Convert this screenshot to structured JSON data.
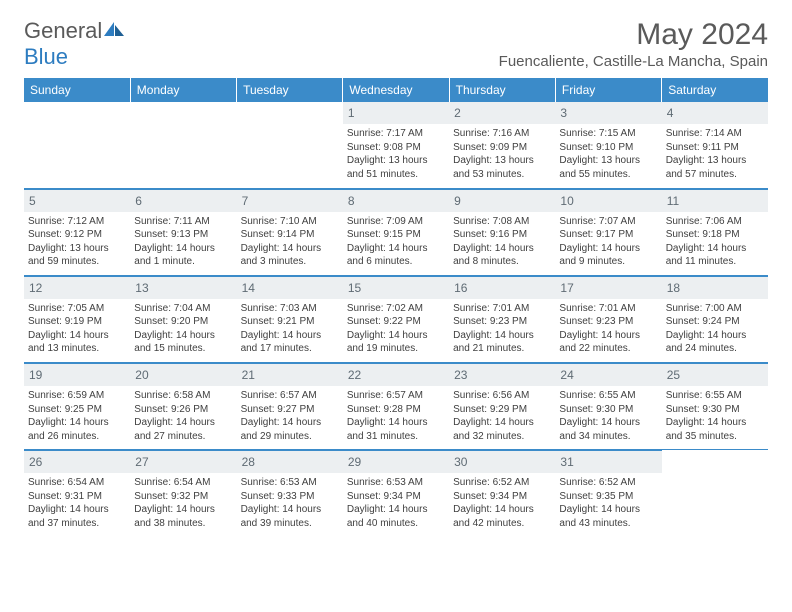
{
  "logo": {
    "text1": "General",
    "text2": "Blue"
  },
  "header": {
    "month_title": "May 2024",
    "location": "Fuencaliente, Castille-La Mancha, Spain"
  },
  "colors": {
    "header_bg": "#3b8bc9",
    "header_text": "#ffffff",
    "daynum_bg": "#eceff1",
    "daynum_text": "#5f6b74",
    "body_text": "#404040",
    "rule": "#3b8bc9"
  },
  "daynames": [
    "Sunday",
    "Monday",
    "Tuesday",
    "Wednesday",
    "Thursday",
    "Friday",
    "Saturday"
  ],
  "weeks": [
    [
      null,
      null,
      null,
      {
        "n": "1",
        "sr": "Sunrise: 7:17 AM",
        "ss": "Sunset: 9:08 PM",
        "dl1": "Daylight: 13 hours",
        "dl2": "and 51 minutes."
      },
      {
        "n": "2",
        "sr": "Sunrise: 7:16 AM",
        "ss": "Sunset: 9:09 PM",
        "dl1": "Daylight: 13 hours",
        "dl2": "and 53 minutes."
      },
      {
        "n": "3",
        "sr": "Sunrise: 7:15 AM",
        "ss": "Sunset: 9:10 PM",
        "dl1": "Daylight: 13 hours",
        "dl2": "and 55 minutes."
      },
      {
        "n": "4",
        "sr": "Sunrise: 7:14 AM",
        "ss": "Sunset: 9:11 PM",
        "dl1": "Daylight: 13 hours",
        "dl2": "and 57 minutes."
      }
    ],
    [
      {
        "n": "5",
        "sr": "Sunrise: 7:12 AM",
        "ss": "Sunset: 9:12 PM",
        "dl1": "Daylight: 13 hours",
        "dl2": "and 59 minutes."
      },
      {
        "n": "6",
        "sr": "Sunrise: 7:11 AM",
        "ss": "Sunset: 9:13 PM",
        "dl1": "Daylight: 14 hours",
        "dl2": "and 1 minute."
      },
      {
        "n": "7",
        "sr": "Sunrise: 7:10 AM",
        "ss": "Sunset: 9:14 PM",
        "dl1": "Daylight: 14 hours",
        "dl2": "and 3 minutes."
      },
      {
        "n": "8",
        "sr": "Sunrise: 7:09 AM",
        "ss": "Sunset: 9:15 PM",
        "dl1": "Daylight: 14 hours",
        "dl2": "and 6 minutes."
      },
      {
        "n": "9",
        "sr": "Sunrise: 7:08 AM",
        "ss": "Sunset: 9:16 PM",
        "dl1": "Daylight: 14 hours",
        "dl2": "and 8 minutes."
      },
      {
        "n": "10",
        "sr": "Sunrise: 7:07 AM",
        "ss": "Sunset: 9:17 PM",
        "dl1": "Daylight: 14 hours",
        "dl2": "and 9 minutes."
      },
      {
        "n": "11",
        "sr": "Sunrise: 7:06 AM",
        "ss": "Sunset: 9:18 PM",
        "dl1": "Daylight: 14 hours",
        "dl2": "and 11 minutes."
      }
    ],
    [
      {
        "n": "12",
        "sr": "Sunrise: 7:05 AM",
        "ss": "Sunset: 9:19 PM",
        "dl1": "Daylight: 14 hours",
        "dl2": "and 13 minutes."
      },
      {
        "n": "13",
        "sr": "Sunrise: 7:04 AM",
        "ss": "Sunset: 9:20 PM",
        "dl1": "Daylight: 14 hours",
        "dl2": "and 15 minutes."
      },
      {
        "n": "14",
        "sr": "Sunrise: 7:03 AM",
        "ss": "Sunset: 9:21 PM",
        "dl1": "Daylight: 14 hours",
        "dl2": "and 17 minutes."
      },
      {
        "n": "15",
        "sr": "Sunrise: 7:02 AM",
        "ss": "Sunset: 9:22 PM",
        "dl1": "Daylight: 14 hours",
        "dl2": "and 19 minutes."
      },
      {
        "n": "16",
        "sr": "Sunrise: 7:01 AM",
        "ss": "Sunset: 9:23 PM",
        "dl1": "Daylight: 14 hours",
        "dl2": "and 21 minutes."
      },
      {
        "n": "17",
        "sr": "Sunrise: 7:01 AM",
        "ss": "Sunset: 9:23 PM",
        "dl1": "Daylight: 14 hours",
        "dl2": "and 22 minutes."
      },
      {
        "n": "18",
        "sr": "Sunrise: 7:00 AM",
        "ss": "Sunset: 9:24 PM",
        "dl1": "Daylight: 14 hours",
        "dl2": "and 24 minutes."
      }
    ],
    [
      {
        "n": "19",
        "sr": "Sunrise: 6:59 AM",
        "ss": "Sunset: 9:25 PM",
        "dl1": "Daylight: 14 hours",
        "dl2": "and 26 minutes."
      },
      {
        "n": "20",
        "sr": "Sunrise: 6:58 AM",
        "ss": "Sunset: 9:26 PM",
        "dl1": "Daylight: 14 hours",
        "dl2": "and 27 minutes."
      },
      {
        "n": "21",
        "sr": "Sunrise: 6:57 AM",
        "ss": "Sunset: 9:27 PM",
        "dl1": "Daylight: 14 hours",
        "dl2": "and 29 minutes."
      },
      {
        "n": "22",
        "sr": "Sunrise: 6:57 AM",
        "ss": "Sunset: 9:28 PM",
        "dl1": "Daylight: 14 hours",
        "dl2": "and 31 minutes."
      },
      {
        "n": "23",
        "sr": "Sunrise: 6:56 AM",
        "ss": "Sunset: 9:29 PM",
        "dl1": "Daylight: 14 hours",
        "dl2": "and 32 minutes."
      },
      {
        "n": "24",
        "sr": "Sunrise: 6:55 AM",
        "ss": "Sunset: 9:30 PM",
        "dl1": "Daylight: 14 hours",
        "dl2": "and 34 minutes."
      },
      {
        "n": "25",
        "sr": "Sunrise: 6:55 AM",
        "ss": "Sunset: 9:30 PM",
        "dl1": "Daylight: 14 hours",
        "dl2": "and 35 minutes."
      }
    ],
    [
      {
        "n": "26",
        "sr": "Sunrise: 6:54 AM",
        "ss": "Sunset: 9:31 PM",
        "dl1": "Daylight: 14 hours",
        "dl2": "and 37 minutes."
      },
      {
        "n": "27",
        "sr": "Sunrise: 6:54 AM",
        "ss": "Sunset: 9:32 PM",
        "dl1": "Daylight: 14 hours",
        "dl2": "and 38 minutes."
      },
      {
        "n": "28",
        "sr": "Sunrise: 6:53 AM",
        "ss": "Sunset: 9:33 PM",
        "dl1": "Daylight: 14 hours",
        "dl2": "and 39 minutes."
      },
      {
        "n": "29",
        "sr": "Sunrise: 6:53 AM",
        "ss": "Sunset: 9:34 PM",
        "dl1": "Daylight: 14 hours",
        "dl2": "and 40 minutes."
      },
      {
        "n": "30",
        "sr": "Sunrise: 6:52 AM",
        "ss": "Sunset: 9:34 PM",
        "dl1": "Daylight: 14 hours",
        "dl2": "and 42 minutes."
      },
      {
        "n": "31",
        "sr": "Sunrise: 6:52 AM",
        "ss": "Sunset: 9:35 PM",
        "dl1": "Daylight: 14 hours",
        "dl2": "and 43 minutes."
      },
      null
    ]
  ]
}
